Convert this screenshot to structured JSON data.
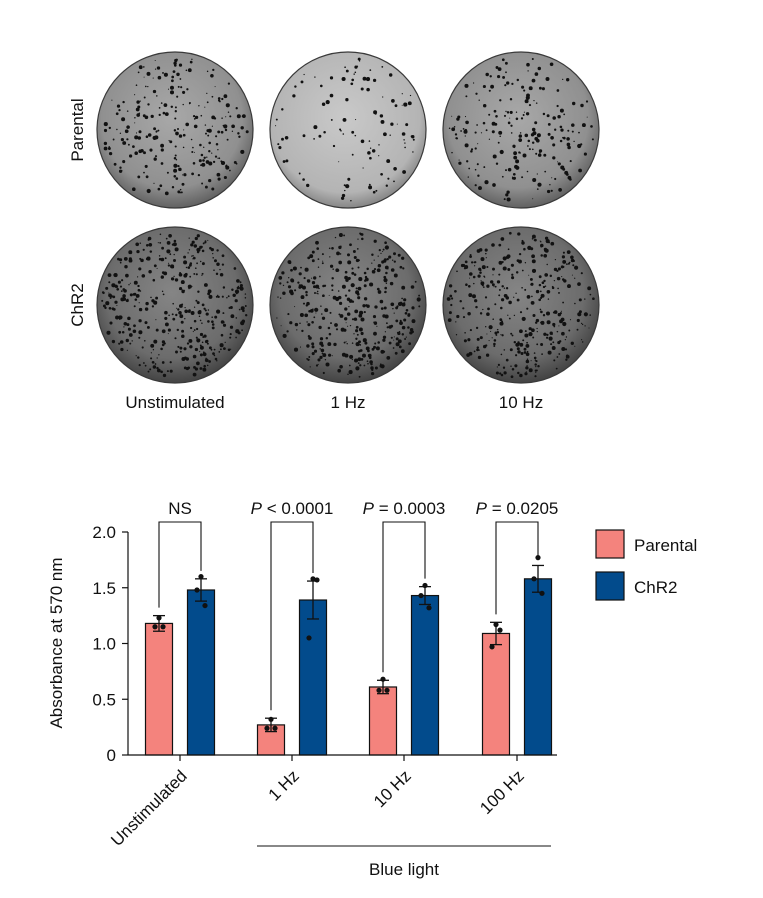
{
  "plates": {
    "row_labels": [
      "Parental",
      "ChR2"
    ],
    "column_labels": [
      "Unstimulated",
      "1 Hz",
      "10 Hz"
    ],
    "grid": [
      [
        "Parental",
        "Unstimulated"
      ],
      [
        "Parental",
        "1 Hz"
      ],
      [
        "Parental",
        "10 Hz"
      ],
      [
        "ChR2",
        "Unstimulated"
      ],
      [
        "ChR2",
        "1 Hz"
      ],
      [
        "ChR2",
        "10 Hz"
      ]
    ]
  },
  "chart_data": {
    "type": "bar",
    "categories": [
      "Unstimulated",
      "1 Hz",
      "10 Hz",
      "100 Hz"
    ],
    "group_label": "Blue light",
    "group_categories": [
      "1 Hz",
      "10 Hz",
      "100 Hz"
    ],
    "ylabel": "Absorbance at 570 nm",
    "ylim": [
      0,
      2.0
    ],
    "yticks": [
      {
        "value": 0,
        "label": "0"
      },
      {
        "value": 0.5,
        "label": "0.5"
      },
      {
        "value": 1.0,
        "label": "1.0"
      },
      {
        "value": 1.5,
        "label": "1.5"
      },
      {
        "value": 2.0,
        "label": "2.0"
      }
    ],
    "legend_position": "right",
    "series": [
      {
        "name": "Parental",
        "color": "#f4837d",
        "values": [
          1.18,
          0.27,
          0.61,
          1.09
        ],
        "errors": [
          0.07,
          0.06,
          0.06,
          0.1
        ],
        "points": [
          [
            1.23,
            1.15,
            1.15
          ],
          [
            0.32,
            0.24,
            0.24
          ],
          [
            0.68,
            0.58,
            0.58
          ],
          [
            1.17,
            0.97,
            1.12
          ]
        ]
      },
      {
        "name": "ChR2",
        "color": "#024b8c",
        "values": [
          1.48,
          1.39,
          1.43,
          1.58
        ],
        "errors": [
          0.1,
          0.17,
          0.08,
          0.12
        ],
        "points": [
          [
            1.6,
            1.48,
            1.34
          ],
          [
            1.58,
            1.05,
            1.57
          ],
          [
            1.52,
            1.43,
            1.32
          ],
          [
            1.77,
            1.58,
            1.45
          ]
        ]
      }
    ],
    "annotations": [
      {
        "category": "Unstimulated",
        "text": "NS"
      },
      {
        "category": "1 Hz",
        "text": "P < 0.0001"
      },
      {
        "category": "10 Hz",
        "text": "P = 0.0003"
      },
      {
        "category": "100 Hz",
        "text": "P = 0.0205"
      }
    ]
  }
}
